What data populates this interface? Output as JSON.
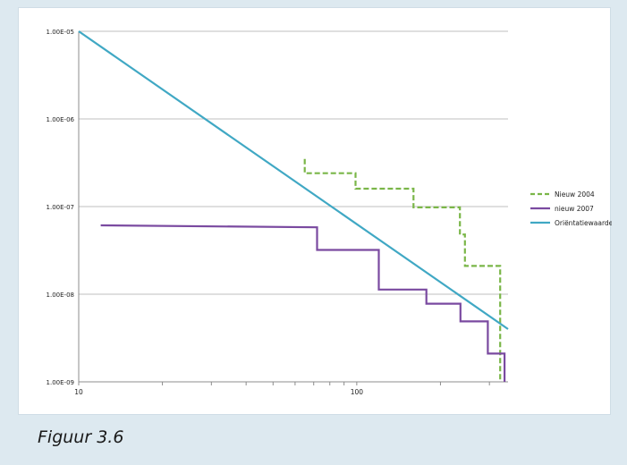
{
  "caption": "Figuur 3.6",
  "chart_data": {
    "type": "line",
    "xscale": "log",
    "yscale": "log",
    "xlim": [
      10,
      350
    ],
    "ylim": [
      1e-09,
      1e-05
    ],
    "x_tick_labels": [
      "10",
      "100"
    ],
    "y_tick_labels": [
      "1.00E-05",
      "1.00E-06",
      "1.00E-07",
      "1.00E-08",
      "1.00E-09"
    ],
    "grid": "horizontal",
    "legend_position": "right",
    "series": [
      {
        "name": "Nieuw 2004",
        "style": "dashed",
        "color": "#7ab648",
        "x": [
          65,
          65,
          99,
          99,
          160,
          160,
          235,
          235,
          245,
          245,
          328,
          328
        ],
        "y": [
          3.5e-07,
          2.4e-07,
          2.4e-07,
          1.6e-07,
          1.6e-07,
          9.8e-08,
          9.8e-08,
          4.8e-08,
          4.8e-08,
          2.1e-08,
          2.1e-08,
          1e-09
        ]
      },
      {
        "name": "nieuw 2007",
        "style": "solid",
        "color": "#7a4aa0",
        "x": [
          12,
          72,
          72,
          120,
          120,
          178,
          178,
          236,
          236,
          296,
          296,
          340,
          340
        ],
        "y": [
          6.1e-08,
          5.8e-08,
          3.2e-08,
          3.2e-08,
          1.13e-08,
          1.13e-08,
          7.8e-09,
          7.8e-09,
          4.9e-09,
          4.9e-09,
          2.1e-09,
          2.1e-09,
          1e-09
        ]
      },
      {
        "name": "Oriëntatiewaarde",
        "style": "solid",
        "color": "#40a8c4",
        "x": [
          10,
          350
        ],
        "y": [
          1e-05,
          4e-09
        ]
      }
    ]
  }
}
